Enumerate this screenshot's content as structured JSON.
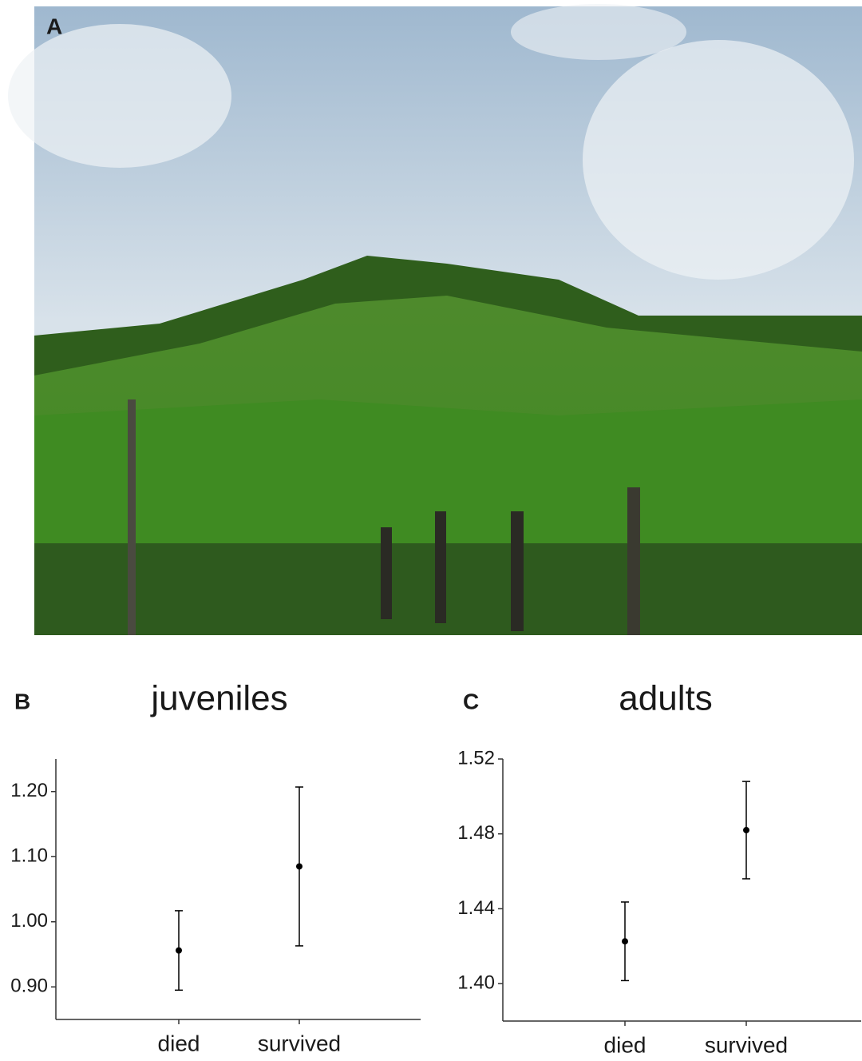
{
  "figure": {
    "photo_label": "A"
  },
  "chart_data": [
    {
      "type": "errorpoint",
      "panel_label": "B",
      "title": "juveniles",
      "categories": [
        "died",
        "survived"
      ],
      "values": [
        0.956,
        1.085
      ],
      "errors": [
        0.061,
        0.122
      ],
      "color": "#000000",
      "ylim": [
        0.85,
        1.25
      ],
      "yticks": [
        {
          "value": 0.9,
          "label": "0.90"
        },
        {
          "value": 1.0,
          "label": "1.00"
        },
        {
          "value": 1.1,
          "label": "1.10"
        },
        {
          "value": 1.2,
          "label": "1.20"
        }
      ]
    },
    {
      "type": "errorpoint",
      "panel_label": "C",
      "title": "adults",
      "categories": [
        "died",
        "survived"
      ],
      "values": [
        1.4226,
        1.482
      ],
      "errors": [
        0.021,
        0.026
      ],
      "color": "#000000",
      "ylim": [
        1.38,
        1.52
      ],
      "yticks": [
        {
          "value": 1.4,
          "label": "1.40"
        },
        {
          "value": 1.44,
          "label": "1.44"
        },
        {
          "value": 1.48,
          "label": "1.48"
        },
        {
          "value": 1.52,
          "label": "1.52"
        }
      ]
    }
  ]
}
